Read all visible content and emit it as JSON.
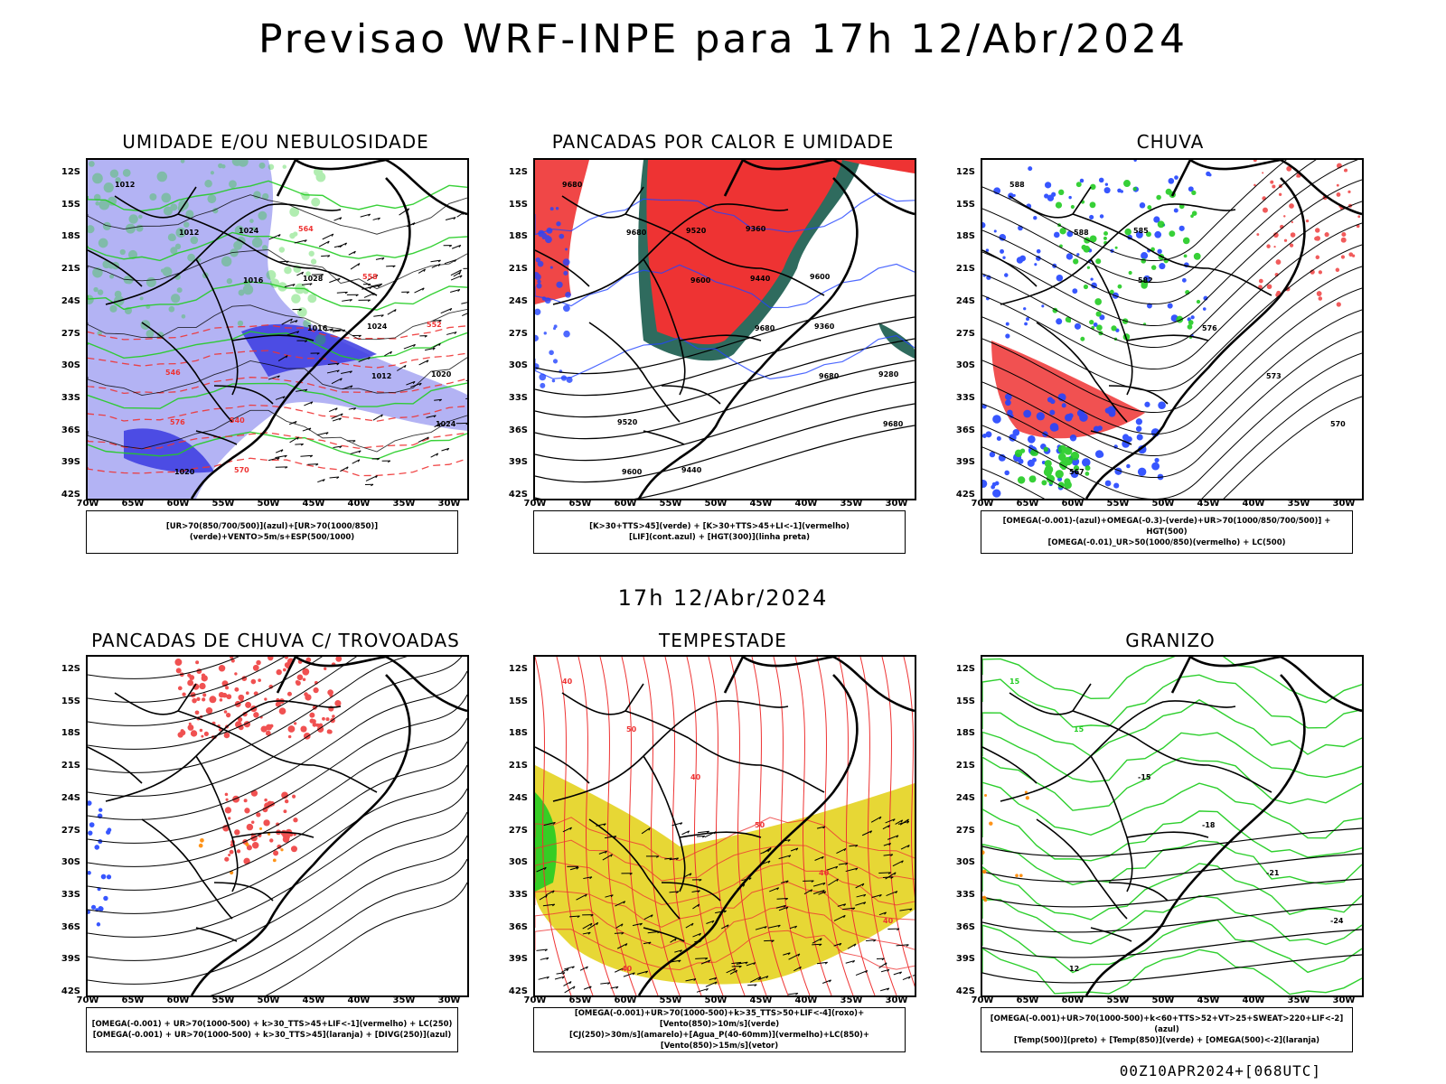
{
  "title": "Previsao WRF-INPE  para 17h 12/Abr/2024",
  "subtitle": "17h 12/Abr/2024",
  "footer": "00Z10APR2024+[068UTC]",
  "axes": {
    "y_ticks": [
      "12S",
      "15S",
      "18S",
      "21S",
      "24S",
      "27S",
      "30S",
      "33S",
      "36S",
      "39S",
      "42S"
    ],
    "x_ticks": [
      "70W",
      "65W",
      "60W",
      "55W",
      "50W",
      "45W",
      "40W",
      "35W",
      "30W"
    ]
  },
  "colors": {
    "frame": "#000000",
    "humidity_blue": "#9a9af0",
    "humidity_blue_dark": "#3a3ae0",
    "green": "#22cc22",
    "red": "#ee3333",
    "dark_teal": "#2f6b5e",
    "blue": "#2244ff",
    "yellow": "#e6d52a",
    "orange": "#ff8800"
  },
  "panels": [
    {
      "title": "UMIDADE E/OU NEBULOSIDADE",
      "legend": [
        "[UR>70(850/700/500)](azul)+[UR>70(1000/850)](verde)+VENTO>5m/s+ESP(500/1000)"
      ],
      "contour_labels": [
        "1012",
        "1012",
        "1016",
        "1016",
        "1012",
        "1024",
        "1020",
        "1024",
        "1028",
        "1024",
        "1020",
        "576",
        "570",
        "564",
        "558",
        "552",
        "546",
        "540"
      ]
    },
    {
      "title": "PANCADAS POR CALOR E UMIDADE",
      "legend": [
        "[K>30+TTS>45](verde) + [K>30+TTS>45+LI<-1](vermelho)",
        "[LIF](cont.azul) + [HGT(300)](linha preta)"
      ],
      "contour_labels": [
        "9680",
        "9680",
        "9600",
        "9680",
        "9680",
        "9680",
        "9600",
        "9520",
        "9440",
        "9360",
        "9280",
        "9520",
        "9440",
        "9360",
        "9600"
      ]
    },
    {
      "title": "CHUVA",
      "legend": [
        "[OMEGA(-0.001)-(azul)+OMEGA(-0.3)-(verde)+UR>70(1000/850/700/500)] + HGT(500)",
        "[OMEGA(-0.01)_UR>50(1000/850)(vermelho) + LC(500)"
      ],
      "contour_labels": [
        "588",
        "588",
        "582",
        "576",
        "573",
        "570",
        "567",
        "585"
      ]
    },
    {
      "title": "PANCADAS DE CHUVA C/ TROVOADAS",
      "legend": [
        "[OMEGA(-0.001) + UR>70(1000-500) + k>30_TTS>45+LIF<-1](vermelho) + LC(250)",
        "[OMEGA(-0.001) + UR>70(1000-500) + k>30_TTS>45](laranja) + [DIVG(250)](azul)"
      ],
      "contour_labels": []
    },
    {
      "title": "TEMPESTADE",
      "legend": [
        "[OMEGA(-0.001)+UR>70(1000-500)+k>35_TTS>50+LIF<-4](roxo)+[Vento(850)>10m/s](verde)",
        "[CJ(250)>30m/s](amarelo)+[Agua_P(40-60mm)](vermelho)+LC(850)+[Vento(850)>15m/s](vetor)"
      ],
      "contour_labels": [
        "40",
        "50",
        "40",
        "50",
        "40",
        "40",
        "40"
      ]
    },
    {
      "title": "GRANIZO",
      "legend": [
        "[OMEGA(-0.001)+UR>70(1000-500)+k<60+TTS>52+VT>25+SWEAT>220+LIF<-2](azul)",
        "[Temp(500)](preto) + [Temp(850)](verde) + [OMEGA(500)<-2](laranja)"
      ],
      "contour_labels": [
        "15",
        "15",
        "-15",
        "-18",
        "-21",
        "-24",
        "12"
      ]
    }
  ]
}
